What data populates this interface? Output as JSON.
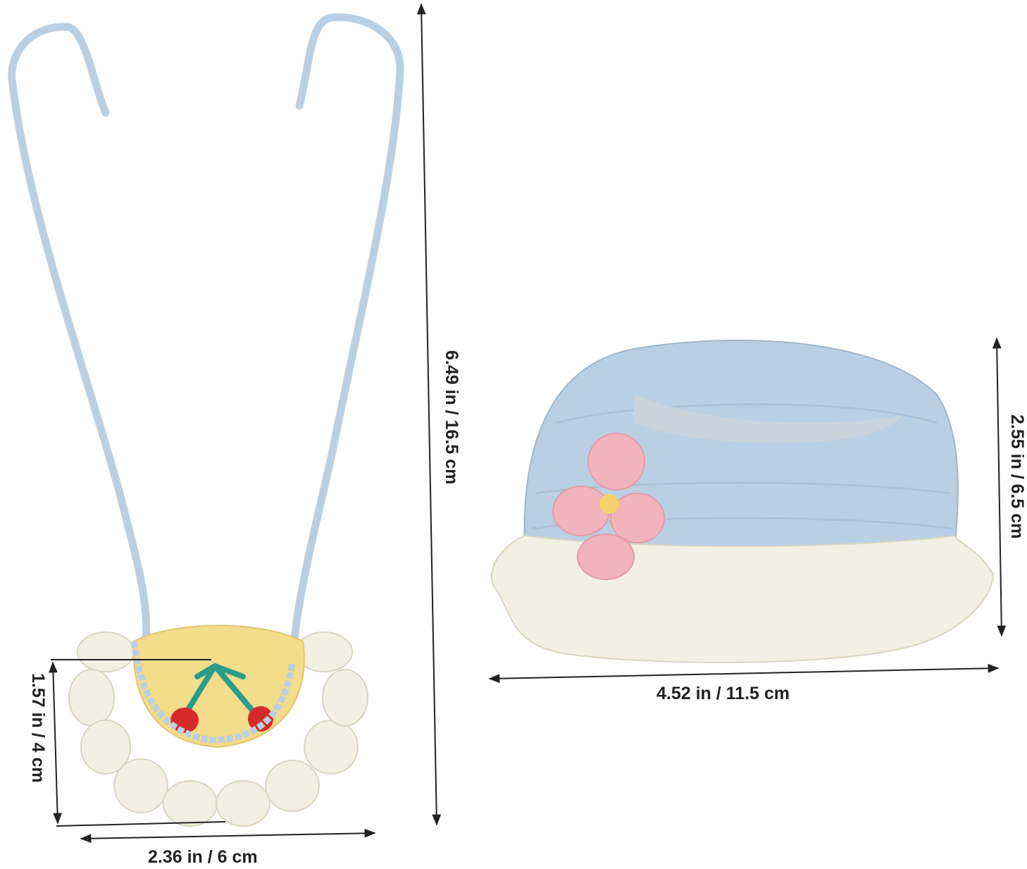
{
  "colors": {
    "yarn_blue": "#b9cfe3",
    "yarn_white": "#f2f0e2",
    "yarn_yellow": "#f3dc8a",
    "cherry": "#d62a2a",
    "leaf": "#2a9c8a",
    "flower_pink": "#f2b3bb",
    "arrow": "#222222"
  },
  "necklace": {
    "height_label": "6.49 in / 16.5 cm",
    "bib_height_label": "1.57 in / 4 cm",
    "bib_width_label": "2.36 in / 6 cm"
  },
  "hat": {
    "height_label": "2.55 in / 6.5 cm",
    "width_label": "4.52 in / 11.5 cm"
  }
}
